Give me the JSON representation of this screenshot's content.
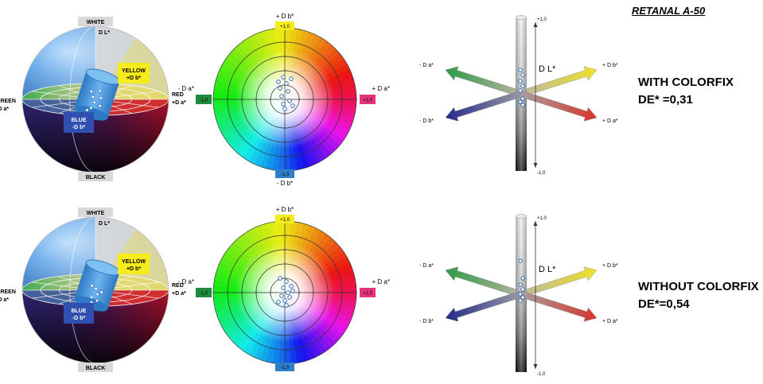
{
  "title": "RETANAL A-50",
  "panels": [
    {
      "label": "WITH COLORFIX",
      "de_label": "DE* =0,31",
      "sphere": {
        "white": "WHITE",
        "black": "BLACK",
        "dl": "D L*",
        "yellow": "YELLOW",
        "yellow_sub": "+D b*",
        "red": "RED",
        "red_sub": "+D a*",
        "green": "GREEN",
        "green_sub": "-D a*",
        "blue": "BLUE",
        "blue_sub": "-D b*"
      },
      "wheel": {
        "top": "+ D b*",
        "bottom": "- D b*",
        "left": "- D a*",
        "right": "+ D a*",
        "top_tag": "+1,0",
        "bottom_tag": "-1,0",
        "left_tag": "-1,0",
        "right_tag": "+1,0"
      },
      "axes3d": {
        "dl": "D L*",
        "top": "+1,0",
        "bottom": "-1,0",
        "minus_da": "- D a*",
        "plus_db": "+ D b*",
        "minus_db": "- D b*",
        "plus_da": "+ D a*"
      }
    },
    {
      "label": "WITHOUT COLORFIX",
      "de_label": "DE*=0,54",
      "sphere": {
        "white": "WHITE",
        "black": "BLACK",
        "dl": "D L*",
        "yellow": "YELLOW",
        "yellow_sub": "+D b*",
        "red": "RED",
        "red_sub": "+D a*",
        "green": "GREEN",
        "green_sub": "-D a*",
        "blue": "BLUE",
        "blue_sub": "-D b*"
      },
      "wheel": {
        "top": "+ D b*",
        "bottom": "",
        "left": "- D a*",
        "right": "+ D a*",
        "top_tag": "+1,0",
        "bottom_tag": "-1,0",
        "left_tag": "-1,0",
        "right_tag": "+1,0"
      },
      "axes3d": {
        "dl": "D L*",
        "top": "+1,0",
        "bottom": "-1,0",
        "minus_da": "- D a*",
        "plus_db": "+ D b*",
        "minus_db": "- D b*",
        "plus_da": "+ D a*"
      }
    }
  ],
  "colors": {
    "yellow": "#f7ec1b",
    "red": "#d9252e",
    "green": "#1f8a3b",
    "blue": "#2f6fbf",
    "magenta": "#e6347a",
    "cyl": "#3f8fd6"
  }
}
